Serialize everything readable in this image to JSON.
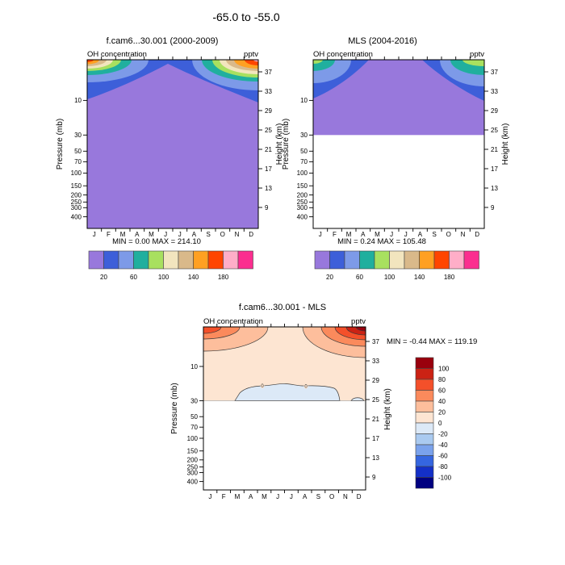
{
  "main_title": "-65.0 to -55.0",
  "months": [
    "J",
    "F",
    "M",
    "A",
    "M",
    "J",
    "J",
    "A",
    "S",
    "O",
    "N",
    "D"
  ],
  "pressure_labels": [
    "10",
    "30",
    "50",
    "70",
    "100",
    "150",
    "200",
    "250",
    "300",
    "400"
  ],
  "height_labels": [
    "37",
    "33",
    "29",
    "25",
    "21",
    "17",
    "13",
    "9"
  ],
  "axis": {
    "pressure_title": "Pressure (mb)",
    "height_title": "Height (km)"
  },
  "panels": {
    "model": {
      "title": "f.cam6...30.001 (2000-2009)",
      "field_label": "OH concentration",
      "units": "pptv",
      "min_max": "MIN =  0.00  MAX = 214.10"
    },
    "obs": {
      "title": "MLS (2004-2016)",
      "field_label": "OH concentration",
      "units": "pptv",
      "min_max": "MIN =  0.24  MAX = 105.48"
    },
    "diff": {
      "title": "f.cam6...30.001 - MLS",
      "field_label": "OH concentration",
      "units": "pptv",
      "min_max": "MIN = -0.44  MAX = 119.19"
    }
  },
  "colorbar": {
    "labels": [
      "20",
      "60",
      "100",
      "140",
      "180"
    ],
    "colors": [
      "#9878DC",
      "#3D5FD9",
      "#7D9AE8",
      "#20AF9E",
      "#A8E05F",
      "#F2E5BE",
      "#D9B98A",
      "#FFA022",
      "#FF4500",
      "#FFAEC8",
      "#FB2E8F"
    ]
  },
  "diff_colorbar": {
    "labels": [
      "100",
      "80",
      "60",
      "40",
      "20",
      "0",
      "-20",
      "-40",
      "-60",
      "-80",
      "-100"
    ],
    "colors": [
      "#99000D",
      "#CB2214",
      "#F4502A",
      "#FB8A5C",
      "#FDBE9C",
      "#FDE5D2",
      "#DCE9F7",
      "#AACAF0",
      "#7AA2EC",
      "#3566E0",
      "#1430C8",
      "#000080"
    ]
  },
  "contour_label_zero": "0",
  "chart_data": [
    {
      "type": "heatmap",
      "title": "f.cam6...30.001 (2000-2009)",
      "subtitle_field": "OH concentration",
      "units": "pptv",
      "x": [
        "J",
        "F",
        "M",
        "A",
        "M",
        "J",
        "J",
        "A",
        "S",
        "O",
        "N",
        "D"
      ],
      "ylabel_left": "Pressure (mb)",
      "ylabel_right": "Height (km)",
      "pressure_ticks_mb": [
        10,
        30,
        50,
        70,
        100,
        150,
        200,
        250,
        300,
        400
      ],
      "height_ticks_km": [
        37,
        33,
        29,
        25,
        21,
        17,
        13,
        9
      ],
      "contour_levels": [
        20,
        40,
        60,
        80,
        100,
        120,
        140,
        160,
        180,
        200
      ],
      "min": 0.0,
      "max": 214.1,
      "pressure_levels_mb_estimated": [
        3,
        5,
        10,
        30,
        100
      ],
      "values_estimated_pptv": [
        [
          165,
          120,
          75,
          45,
          25,
          18,
          22,
          35,
          70,
          110,
          150,
          195
        ],
        [
          80,
          55,
          35,
          25,
          18,
          14,
          16,
          22,
          35,
          55,
          75,
          95
        ],
        [
          25,
          20,
          16,
          12,
          10,
          8,
          9,
          11,
          14,
          18,
          22,
          28
        ],
        [
          5,
          5,
          5,
          5,
          5,
          5,
          5,
          5,
          5,
          5,
          5,
          5
        ],
        [
          3,
          3,
          3,
          3,
          3,
          3,
          3,
          3,
          3,
          3,
          3,
          3
        ]
      ]
    },
    {
      "type": "heatmap",
      "title": "MLS (2004-2016)",
      "subtitle_field": "OH concentration",
      "units": "pptv",
      "x": [
        "J",
        "F",
        "M",
        "A",
        "M",
        "J",
        "J",
        "A",
        "S",
        "O",
        "N",
        "D"
      ],
      "ylabel_left": "Pressure (mb)",
      "ylabel_right": "Height (km)",
      "pressure_ticks_mb": [
        10,
        30,
        50,
        70,
        100,
        150,
        200,
        250,
        300,
        400
      ],
      "height_ticks_km": [
        37,
        33,
        29,
        25,
        21,
        17,
        13,
        9
      ],
      "contour_levels": [
        20,
        40,
        60,
        80,
        100
      ],
      "min": 0.24,
      "max": 105.48,
      "note": "no data below 30 mb",
      "pressure_levels_mb_estimated": [
        3,
        5,
        10,
        30
      ],
      "values_estimated_pptv": [
        [
          85,
          60,
          40,
          25,
          15,
          12,
          13,
          20,
          35,
          55,
          75,
          95
        ],
        [
          45,
          35,
          25,
          18,
          12,
          10,
          11,
          15,
          22,
          32,
          42,
          50
        ],
        [
          18,
          15,
          12,
          10,
          8,
          7,
          8,
          9,
          11,
          13,
          16,
          19
        ],
        [
          6,
          6,
          6,
          6,
          6,
          6,
          6,
          6,
          6,
          6,
          6,
          6
        ]
      ]
    },
    {
      "type": "heatmap",
      "title": "f.cam6...30.001 - MLS",
      "subtitle_field": "OH concentration",
      "units": "pptv",
      "x": [
        "J",
        "F",
        "M",
        "A",
        "M",
        "J",
        "J",
        "A",
        "S",
        "O",
        "N",
        "D"
      ],
      "ylabel_left": "Pressure (mb)",
      "ylabel_right": "Height (km)",
      "pressure_ticks_mb": [
        10,
        30,
        50,
        70,
        100,
        150,
        200,
        250,
        300,
        400
      ],
      "height_ticks_km": [
        37,
        33,
        29,
        25,
        21,
        17,
        13,
        9
      ],
      "contour_levels": [
        -20,
        0,
        20,
        40,
        60,
        80,
        100
      ],
      "min": -0.44,
      "max": 119.19,
      "note": "no data below 30 mb",
      "pressure_levels_mb_estimated": [
        3,
        5,
        10,
        25,
        30
      ],
      "values_estimated_pptv": [
        [
          80,
          55,
          35,
          20,
          12,
          8,
          9,
          15,
          30,
          55,
          75,
          100
        ],
        [
          35,
          22,
          14,
          8,
          6,
          5,
          5,
          7,
          12,
          20,
          30,
          42
        ],
        [
          8,
          6,
          5,
          4,
          3,
          3,
          3,
          4,
          5,
          6,
          7,
          9
        ],
        [
          2,
          1,
          -0.2,
          -0.3,
          -0.3,
          -0.2,
          -0.3,
          -0.2,
          -0.1,
          1,
          2,
          2
        ],
        [
          1,
          1,
          -0.2,
          -0.3,
          -0.4,
          -0.3,
          -0.3,
          -0.3,
          -0.2,
          0.5,
          1,
          1
        ]
      ]
    }
  ]
}
